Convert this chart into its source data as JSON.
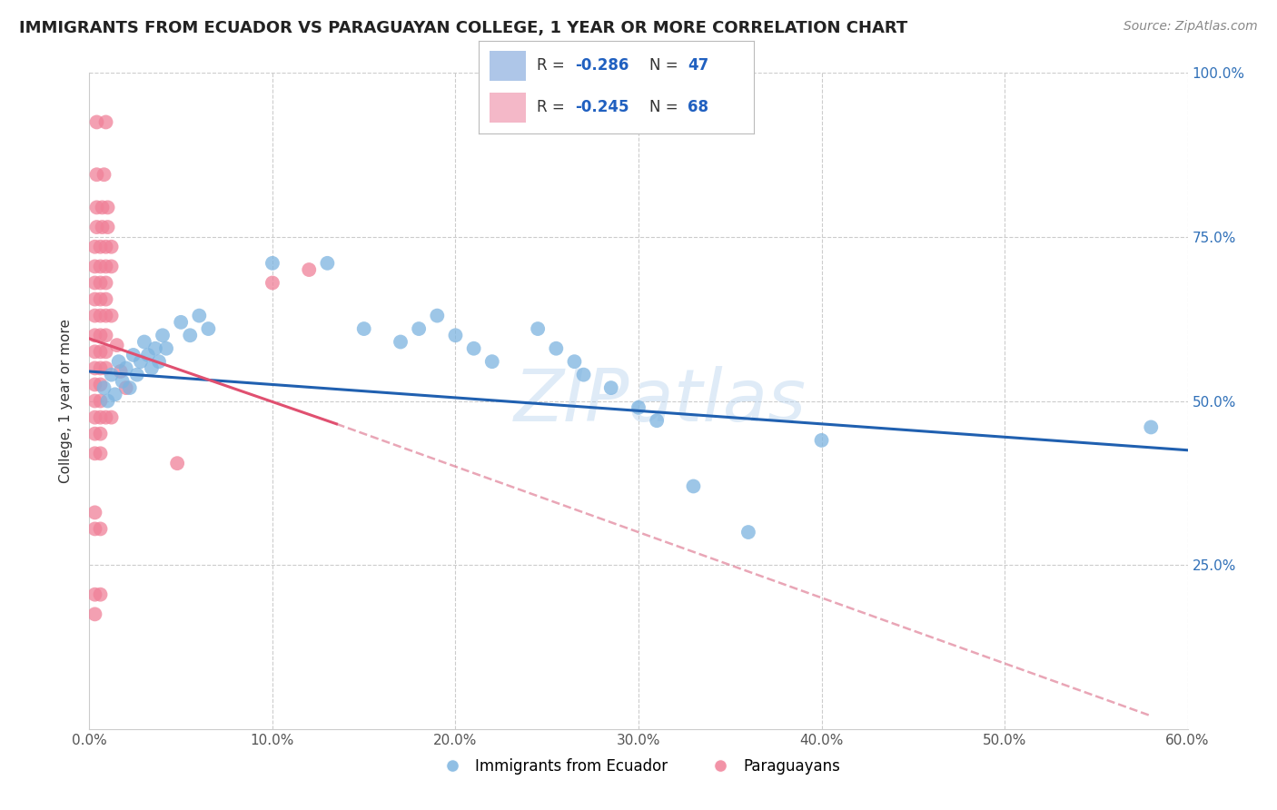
{
  "title": "IMMIGRANTS FROM ECUADOR VS PARAGUAYAN COLLEGE, 1 YEAR OR MORE CORRELATION CHART",
  "source": "Source: ZipAtlas.com",
  "ylabel": "College, 1 year or more",
  "xlim": [
    0.0,
    0.6
  ],
  "ylim": [
    0.0,
    1.0
  ],
  "xticks": [
    0.0,
    0.1,
    0.2,
    0.3,
    0.4,
    0.5,
    0.6
  ],
  "yticks": [
    0.0,
    0.25,
    0.5,
    0.75,
    1.0
  ],
  "xtick_labels": [
    "0.0%",
    "10.0%",
    "20.0%",
    "30.0%",
    "40.0%",
    "50.0%",
    "60.0%"
  ],
  "ytick_labels_right": [
    "",
    "25.0%",
    "50.0%",
    "75.0%",
    "100.0%"
  ],
  "legend_labels_bottom": [
    "Immigrants from Ecuador",
    "Paraguayans"
  ],
  "ecuador_color": "#7db4e0",
  "paraguay_color": "#f08098",
  "watermark": "ZIPatlas",
  "ecuador_points": [
    [
      0.008,
      0.52
    ],
    [
      0.01,
      0.5
    ],
    [
      0.012,
      0.54
    ],
    [
      0.014,
      0.51
    ],
    [
      0.016,
      0.56
    ],
    [
      0.018,
      0.53
    ],
    [
      0.02,
      0.55
    ],
    [
      0.022,
      0.52
    ],
    [
      0.024,
      0.57
    ],
    [
      0.026,
      0.54
    ],
    [
      0.028,
      0.56
    ],
    [
      0.03,
      0.59
    ],
    [
      0.032,
      0.57
    ],
    [
      0.034,
      0.55
    ],
    [
      0.036,
      0.58
    ],
    [
      0.038,
      0.56
    ],
    [
      0.04,
      0.6
    ],
    [
      0.042,
      0.58
    ],
    [
      0.05,
      0.62
    ],
    [
      0.055,
      0.6
    ],
    [
      0.06,
      0.63
    ],
    [
      0.065,
      0.61
    ],
    [
      0.1,
      0.71
    ],
    [
      0.13,
      0.71
    ],
    [
      0.15,
      0.61
    ],
    [
      0.17,
      0.59
    ],
    [
      0.18,
      0.61
    ],
    [
      0.19,
      0.63
    ],
    [
      0.2,
      0.6
    ],
    [
      0.21,
      0.58
    ],
    [
      0.22,
      0.56
    ],
    [
      0.245,
      0.61
    ],
    [
      0.255,
      0.58
    ],
    [
      0.265,
      0.56
    ],
    [
      0.27,
      0.54
    ],
    [
      0.285,
      0.52
    ],
    [
      0.3,
      0.49
    ],
    [
      0.31,
      0.47
    ],
    [
      0.33,
      0.37
    ],
    [
      0.36,
      0.3
    ],
    [
      0.4,
      0.44
    ],
    [
      0.58,
      0.46
    ]
  ],
  "paraguay_points": [
    [
      0.004,
      0.925
    ],
    [
      0.009,
      0.925
    ],
    [
      0.004,
      0.845
    ],
    [
      0.008,
      0.845
    ],
    [
      0.004,
      0.795
    ],
    [
      0.007,
      0.795
    ],
    [
      0.01,
      0.795
    ],
    [
      0.004,
      0.765
    ],
    [
      0.007,
      0.765
    ],
    [
      0.01,
      0.765
    ],
    [
      0.003,
      0.735
    ],
    [
      0.006,
      0.735
    ],
    [
      0.009,
      0.735
    ],
    [
      0.012,
      0.735
    ],
    [
      0.003,
      0.705
    ],
    [
      0.006,
      0.705
    ],
    [
      0.009,
      0.705
    ],
    [
      0.012,
      0.705
    ],
    [
      0.003,
      0.68
    ],
    [
      0.006,
      0.68
    ],
    [
      0.009,
      0.68
    ],
    [
      0.003,
      0.655
    ],
    [
      0.006,
      0.655
    ],
    [
      0.009,
      0.655
    ],
    [
      0.003,
      0.63
    ],
    [
      0.006,
      0.63
    ],
    [
      0.009,
      0.63
    ],
    [
      0.012,
      0.63
    ],
    [
      0.003,
      0.6
    ],
    [
      0.006,
      0.6
    ],
    [
      0.009,
      0.6
    ],
    [
      0.003,
      0.575
    ],
    [
      0.006,
      0.575
    ],
    [
      0.009,
      0.575
    ],
    [
      0.003,
      0.55
    ],
    [
      0.006,
      0.55
    ],
    [
      0.009,
      0.55
    ],
    [
      0.003,
      0.525
    ],
    [
      0.006,
      0.525
    ],
    [
      0.003,
      0.5
    ],
    [
      0.006,
      0.5
    ],
    [
      0.003,
      0.475
    ],
    [
      0.006,
      0.475
    ],
    [
      0.009,
      0.475
    ],
    [
      0.012,
      0.475
    ],
    [
      0.003,
      0.45
    ],
    [
      0.006,
      0.45
    ],
    [
      0.003,
      0.42
    ],
    [
      0.006,
      0.42
    ],
    [
      0.015,
      0.585
    ],
    [
      0.017,
      0.545
    ],
    [
      0.02,
      0.52
    ],
    [
      0.003,
      0.205
    ],
    [
      0.006,
      0.205
    ],
    [
      0.003,
      0.175
    ],
    [
      0.048,
      0.405
    ],
    [
      0.003,
      0.305
    ],
    [
      0.006,
      0.305
    ],
    [
      0.003,
      0.33
    ],
    [
      0.1,
      0.68
    ],
    [
      0.12,
      0.7
    ]
  ],
  "blue_line_solid": {
    "x0": 0.0,
    "y0": 0.545,
    "x1": 0.6,
    "y1": 0.425
  },
  "pink_line_solid": {
    "x0": 0.0,
    "y0": 0.595,
    "x1": 0.135,
    "y1": 0.465
  },
  "pink_line_dashed": {
    "x0": 0.135,
    "y0": 0.465,
    "x1": 0.58,
    "y1": 0.02
  },
  "legend_box": {
    "R1_color": "#aec6e8",
    "R1_text": "-0.286",
    "N1_text": "47",
    "R2_color": "#f4b8c8",
    "R2_text": "-0.245",
    "N2_text": "68"
  }
}
